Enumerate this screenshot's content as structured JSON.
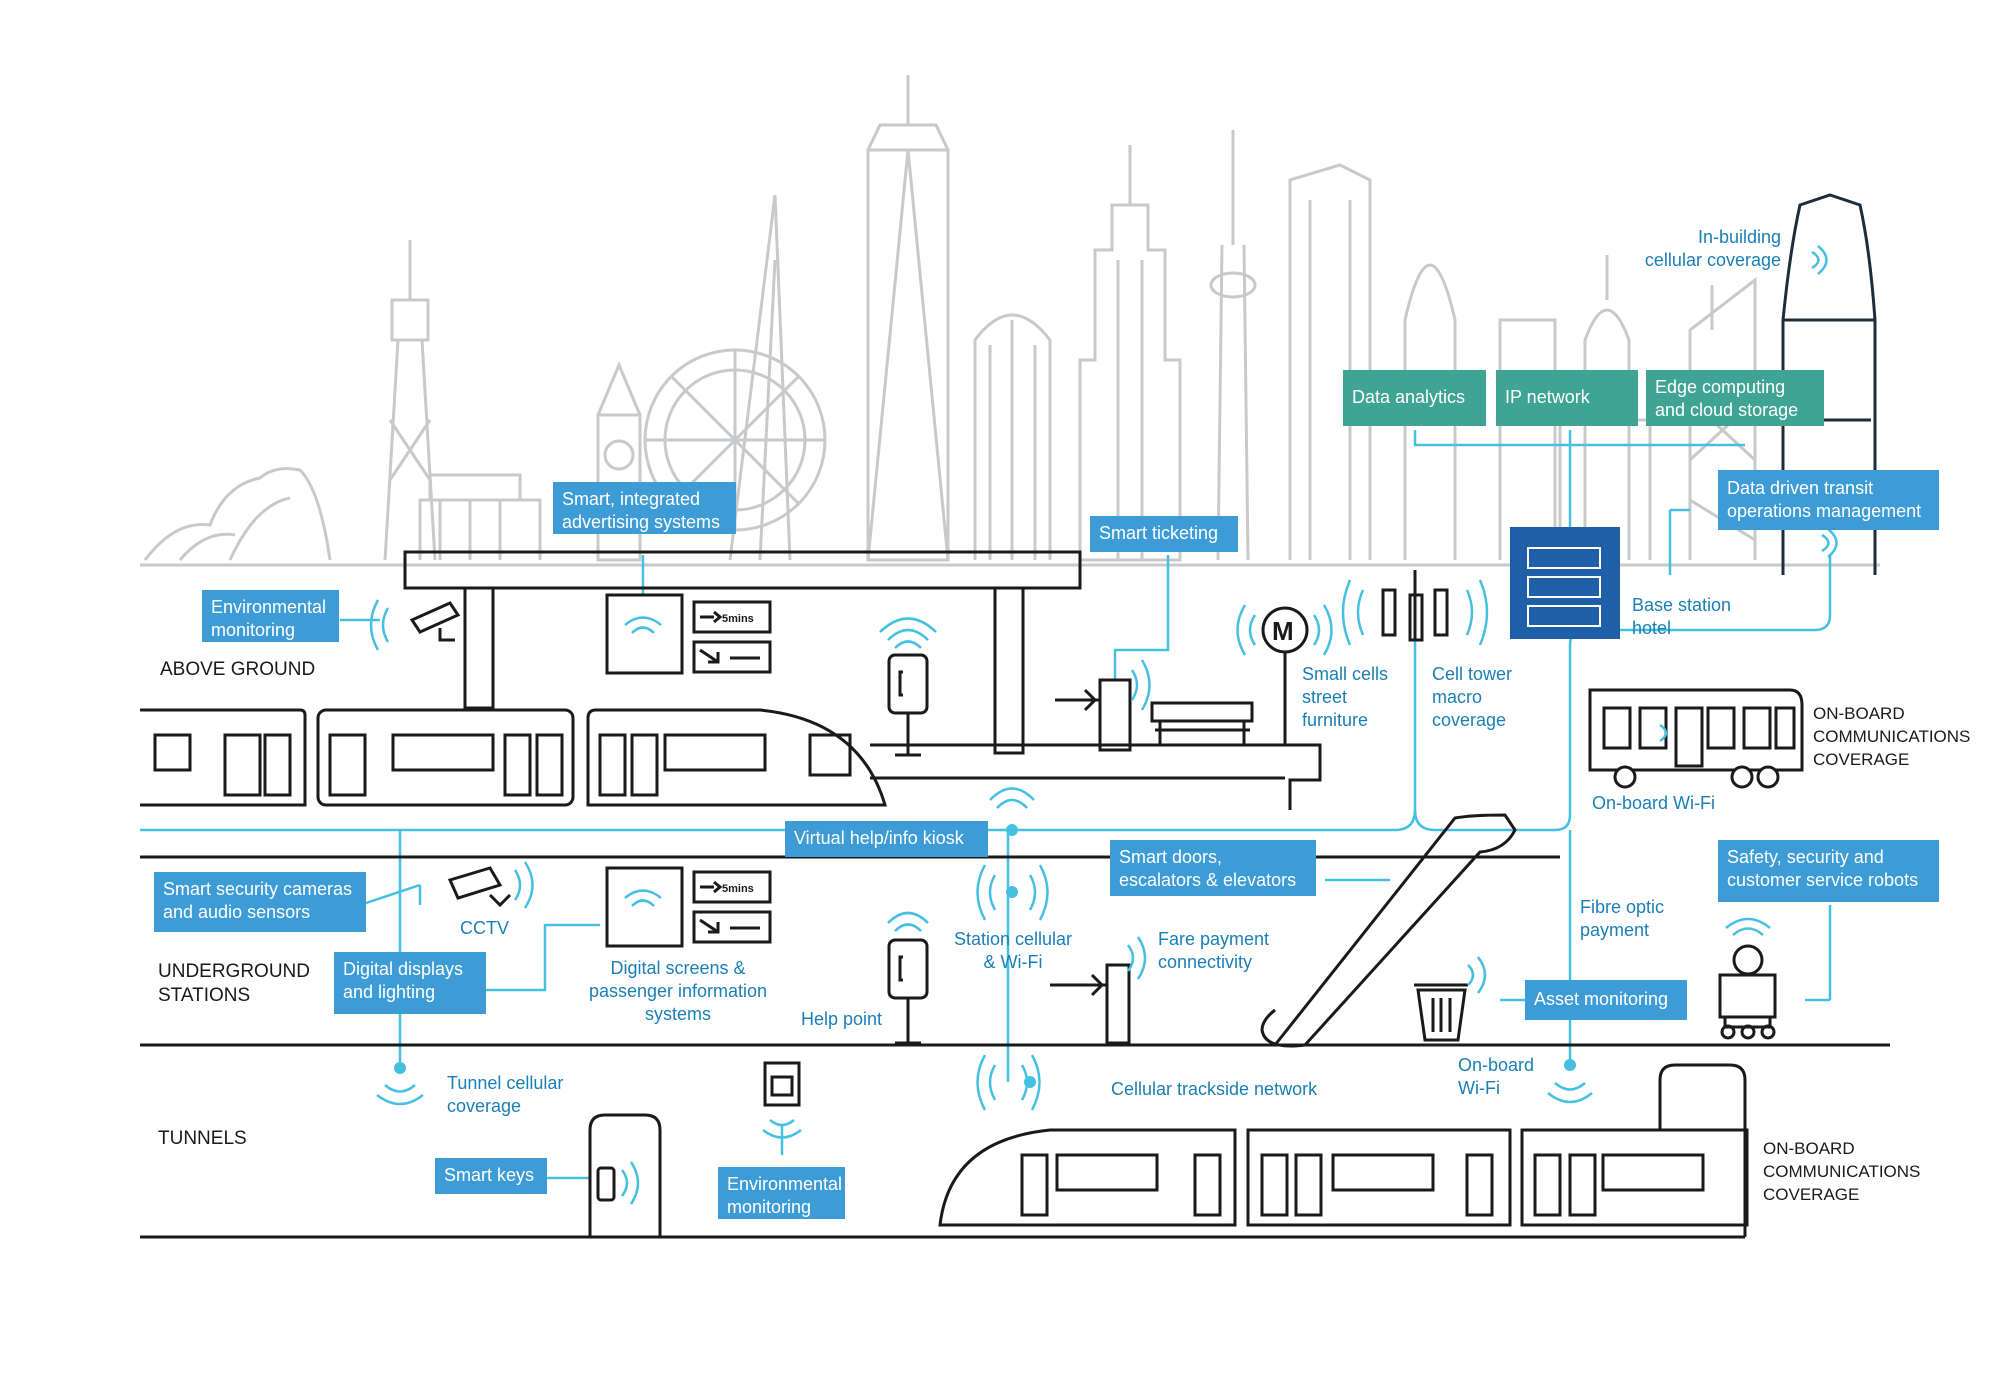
{
  "colors": {
    "skyline": "#c7c9cb",
    "line": "#1a1a1a",
    "fibre": "#45c0e0",
    "label_box": "#3d9bd6",
    "teal_box": "#3fa494",
    "label_text": "#1b7fb6",
    "base_station": "#1f5fa8"
  },
  "zones": {
    "above_ground": "ABOVE GROUND",
    "underground": "UNDERGROUND\nSTATIONS",
    "tunnels": "TUNNELS",
    "onboard_top": "ON-BOARD\nCOMMUNICATIONS\nCOVERAGE",
    "onboard_bottom": "ON-BOARD\nCOMMUNICATIONS\nCOVERAGE"
  },
  "boxes": {
    "environmental_monitoring_top": "Environmental\nmonitoring",
    "smart_advertising": "Smart, integrated\nadvertising systems",
    "smart_ticketing": "Smart ticketing",
    "data_analytics": "Data analytics",
    "ip_network": "IP network",
    "edge_computing": "Edge computing\nand cloud storage",
    "data_driven_transit": "Data driven transit\noperations management",
    "virtual_help": "Virtual help/info kiosk",
    "smart_doors": "Smart doors,\nescalators & elevators",
    "safety_robots": "Safety, security and\ncustomer service robots",
    "smart_security": "Smart security cameras\nand audio sensors",
    "digital_displays": "Digital displays\nand lighting",
    "asset_monitoring": "Asset monitoring",
    "smart_keys": "Smart keys",
    "environmental_monitoring_bottom": "Environmental\nmonitoring"
  },
  "labels": {
    "in_building": "In-building\ncellular coverage",
    "base_station": "Base station\nhotel",
    "small_cells": "Small cells\nstreet\nfurniture",
    "cell_tower": "Cell tower\nmacro\ncoverage",
    "onboard_wifi_bus": "On-board Wi-Fi",
    "fibre_optic": "Fibre optic\npayment",
    "cctv": "CCTV",
    "digital_screens": "Digital screens &\npassenger information\nsystems",
    "station_cellular": "Station cellular\n& Wi-Fi",
    "fare_payment": "Fare payment\nconnectivity",
    "help_point": "Help point",
    "tunnel_cellular": "Tunnel cellular\ncoverage",
    "trackside": "Cellular trackside network",
    "onboard_wifi_train": "On-board\nWi-Fi"
  },
  "signs": {
    "platform_time_top": "5mins",
    "platform_time_bottom": "5mins",
    "metro_symbol": "M"
  }
}
